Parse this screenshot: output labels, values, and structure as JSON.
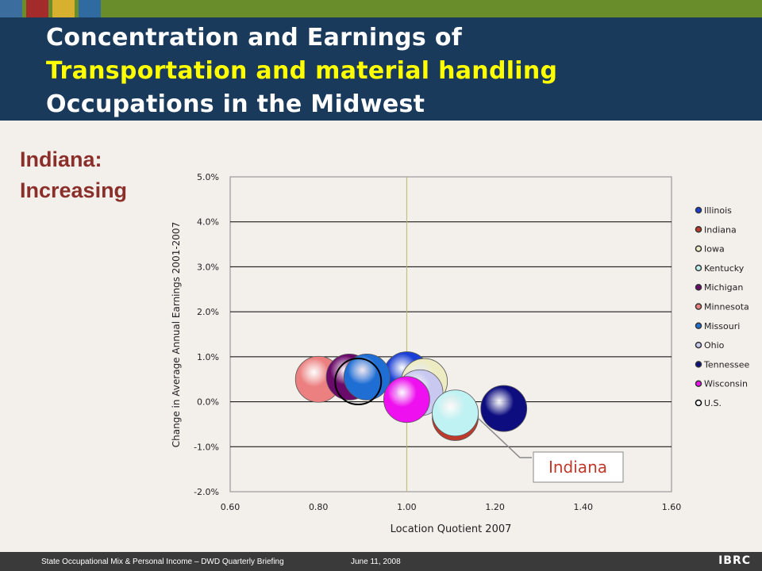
{
  "header": {
    "title_line1": "Concentration and Earnings of",
    "title_line2": "Transportation and material handling",
    "title_line3": "Occupations in the Midwest"
  },
  "subtitle": {
    "line1": "Indiana:",
    "line2": "Increasing"
  },
  "colors": {
    "topbar": "#6a8d2c",
    "header_bg": "#1a3a5c",
    "title_white": "#ffffff",
    "title_yellow": "#ffff00",
    "subtitle": "#8b2f2a"
  },
  "chart_data": {
    "type": "scatter",
    "xlabel": "Location Quotient 2007",
    "ylabel": "Change in Average Annual Earnings 2001-2007",
    "xlim": [
      0.6,
      1.6
    ],
    "ylim": [
      -2.0,
      5.0
    ],
    "x_ticks": [
      "0.60",
      "0.80",
      "1.00",
      "1.20",
      "1.40",
      "1.60"
    ],
    "y_ticks": [
      "-2.0%",
      "-1.0%",
      "0.0%",
      "1.0%",
      "2.0%",
      "3.0%",
      "4.0%",
      "5.0%"
    ],
    "grid": "horizontal",
    "reference_x": 1.0,
    "legend_position": "right",
    "series": [
      {
        "name": "Illinois",
        "x": 1.0,
        "y": 0.6,
        "color": "#1a3fd6"
      },
      {
        "name": "Indiana",
        "x": 1.11,
        "y": -0.35,
        "color": "#c0392b"
      },
      {
        "name": "Iowa",
        "x": 1.04,
        "y": 0.45,
        "color": "#ecebc2"
      },
      {
        "name": "Kentucky",
        "x": 1.11,
        "y": -0.25,
        "color": "#bff2f3"
      },
      {
        "name": "Michigan",
        "x": 0.87,
        "y": 0.55,
        "color": "#6a0a6a"
      },
      {
        "name": "Minnesota",
        "x": 0.8,
        "y": 0.5,
        "color": "#ec7f7f"
      },
      {
        "name": "Missouri",
        "x": 0.91,
        "y": 0.55,
        "color": "#1f6ed4"
      },
      {
        "name": "Ohio",
        "x": 1.03,
        "y": 0.2,
        "color": "#c9c8f0"
      },
      {
        "name": "Tennessee",
        "x": 1.22,
        "y": -0.15,
        "color": "#0d0d80"
      },
      {
        "name": "Wisconsin",
        "x": 1.0,
        "y": 0.05,
        "color": "#ee10ee"
      },
      {
        "name": "U.S.",
        "x": 0.89,
        "y": 0.45,
        "color": "#000000"
      }
    ],
    "annotation": {
      "text": "Indiana",
      "color": "#c0392b"
    }
  },
  "footer": {
    "left": "State Occupational Mix & Personal Income – DWD Quarterly Briefing",
    "date": "June 11, 2008",
    "logo": "IBRC"
  }
}
